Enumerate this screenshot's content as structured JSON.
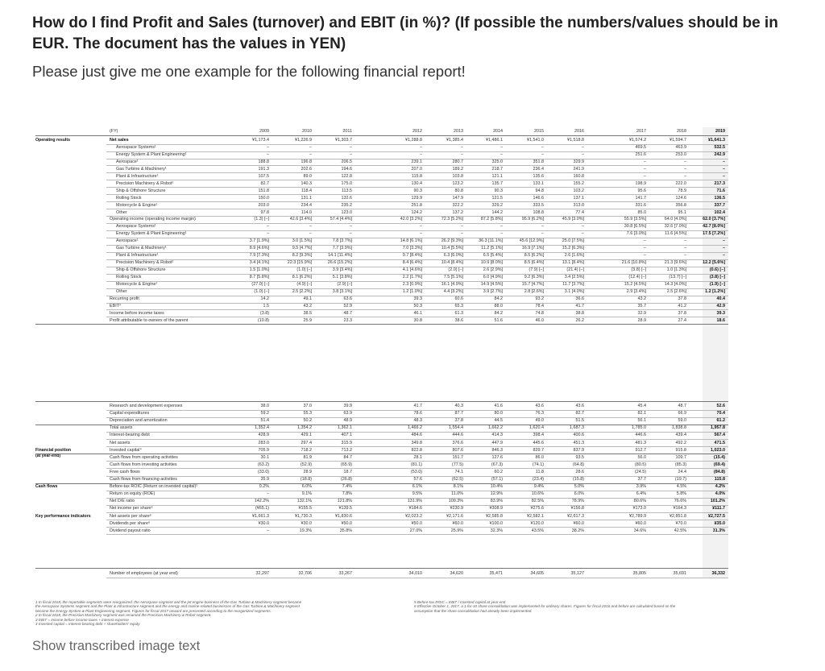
{
  "question": {
    "title": "How do I find Profit and Sales (turnover) and EBIT (in %)? (If possible the numbers/values should be in EUR. The document has the values in YEN)",
    "subtitle": "Please just give me one example for the following financial report!"
  },
  "report": {
    "fy_label": "(FY)",
    "years": [
      "2009",
      "2010",
      "2011",
      "2012",
      "2013",
      "2014",
      "2015",
      "2016",
      "2017",
      "2018",
      "2019"
    ],
    "sections": [
      {
        "label": "Operating results",
        "row": 1
      },
      {
        "label": "Financial position\n(at year-end)",
        "row": 33
      },
      {
        "label": "Cash flows",
        "row": 38
      },
      {
        "label": "Key performance indicators",
        "row": 42
      }
    ],
    "rows": [
      {
        "label": "Net sales",
        "indent": 0,
        "bold_label": true,
        "values": [
          "¥1,173.4",
          "¥1,226.9",
          "¥1,303.7",
          "¥1,288.8",
          "¥1,385.4",
          "¥1,486.1",
          "¥1,541.0",
          "¥1,518.8",
          "¥1,574.2",
          "¥1,594.7",
          "¥1,641.3"
        ]
      },
      {
        "label": "Aerospace Systems¹",
        "indent": 1,
        "values": [
          "–",
          "–",
          "–",
          "–",
          "–",
          "–",
          "–",
          "–",
          "469.5",
          "463.9",
          "532.5"
        ]
      },
      {
        "label": "Energy System & Plant Engineering¹",
        "indent": 1,
        "values": [
          "–",
          "–",
          "–",
          "–",
          "–",
          "–",
          "–",
          "–",
          "251.6",
          "253.0",
          "242.9"
        ]
      },
      {
        "label": "Aerospace¹",
        "indent": 1,
        "values": [
          "188.8",
          "196.8",
          "206.5",
          "239.1",
          "280.7",
          "325.0",
          "351.8",
          "329.9",
          "–",
          "–",
          "–"
        ]
      },
      {
        "label": "Gas Turbine & Machinery¹",
        "indent": 1,
        "values": [
          "191.3",
          "202.6",
          "194.6",
          "207.0",
          "189.2",
          "218.7",
          "236.4",
          "241.9",
          "–",
          "–",
          "–"
        ]
      },
      {
        "label": "Plant & Infrastructure¹",
        "indent": 1,
        "values": [
          "107.5",
          "89.0",
          "122.8",
          "115.8",
          "103.8",
          "121.1",
          "135.6",
          "160.8",
          "–",
          "–",
          "–"
        ]
      },
      {
        "label": "Precision Machinery & Robot²",
        "indent": 1,
        "values": [
          "82.7",
          "140.3",
          "175.0",
          "130.4",
          "123.2",
          "135.7",
          "133.1",
          "155.2",
          "198.9",
          "222.0",
          "217.3"
        ]
      },
      {
        "label": "Ship & Offshore Structure",
        "indent": 1,
        "values": [
          "151.8",
          "118.4",
          "113.5",
          "90.3",
          "80.8",
          "90.3",
          "94.8",
          "103.2",
          "95.6",
          "78.9",
          "71.6"
        ]
      },
      {
        "label": "Rolling Stock",
        "indent": 1,
        "values": [
          "150.0",
          "131.1",
          "132.6",
          "129.9",
          "147.9",
          "121.5",
          "146.6",
          "137.1",
          "141.7",
          "124.6",
          "136.5"
        ]
      },
      {
        "label": "Motorcycle & Engine¹",
        "indent": 1,
        "values": [
          "203.0",
          "234.4",
          "235.2",
          "251.8",
          "322.2",
          "329.2",
          "333.5",
          "313.0",
          "331.6",
          "356.8",
          "337.7"
        ]
      },
      {
        "label": "Other",
        "indent": 1,
        "values": [
          "97.8",
          "114.0",
          "123.0",
          "124.2",
          "137.2",
          "144.2",
          "108.8",
          "77.4",
          "85.0",
          "95.1",
          "102.4"
        ]
      },
      {
        "label": "Operating income (operating income margin)",
        "indent": 0,
        "values": [
          "(1.3)  [–]",
          "42.6  [3.4%]",
          "57.4  [4.4%]",
          "42.0  [3.2%]",
          "72.3  [5.2%]",
          "87.2  [5.8%]",
          "95.9  [6.2%]",
          "45.9  [3.0%]",
          "55.9  [3.5%]",
          "64.0  [4.0%]",
          "62.0  [3.7%]"
        ]
      },
      {
        "label": "Aerospace Systems¹",
        "indent": 1,
        "values": [
          "–",
          "–",
          "–",
          "–",
          "–",
          "–",
          "–",
          "–",
          "30.8  [6.5%]",
          "32.6  [7.0%]",
          "42.7  [8.0%]"
        ]
      },
      {
        "label": "Energy System & Plant Engineering¹",
        "indent": 1,
        "values": [
          "–",
          "–",
          "–",
          "–",
          "–",
          "–",
          "–",
          "–",
          "7.6  [3.0%]",
          "11.6  [4.5%]",
          "17.5  [7.2%]"
        ]
      },
      {
        "label": "Aerospace¹",
        "indent": 1,
        "values": [
          "3.7  [1.9%]",
          "3.0  [1.5%]",
          "7.8  [3.7%]",
          "14.8  [6.1%]",
          "26.2  [9.3%]",
          "36.3  [11.1%]",
          "45.6  [12.9%]",
          "25.0  [7.5%]",
          "–",
          "–",
          "–"
        ]
      },
      {
        "label": "Gas Turbine & Machinery¹",
        "indent": 1,
        "values": [
          "8.9  [4.6%]",
          "9.5  [4.7%]",
          "7.7  [3.9%]",
          "7.0  [3.3%]",
          "10.4  [5.5%]",
          "11.2  [5.1%]",
          "16.9  [7.1%]",
          "15.2  [6.3%]",
          "–",
          "–",
          "–"
        ]
      },
      {
        "label": "Plant & Infrastructure¹",
        "indent": 1,
        "values": [
          "7.9  [7.3%]",
          "8.2  [9.3%]",
          "14.1  [11.4%]",
          "9.7  [8.4%]",
          "6.3  [6.0%]",
          "6.5  [5.4%]",
          "8.5  [6.2%]",
          "2.6  [1.6%]",
          "–",
          "–",
          "–"
        ]
      },
      {
        "label": "Precision Machinery & Robot²",
        "indent": 1,
        "values": [
          "3.4  [4.1%]",
          "22.3  [15.9%]",
          "26.6  [15.2%]",
          "8.4  [6.4%]",
          "10.4  [8.4%]",
          "10.9  [8.0%]",
          "8.5  [6.4%]",
          "13.1  [8.4%]",
          "21.6  [10.8%]",
          "21.3  [9.6%]",
          "12.2  [5.6%]"
        ]
      },
      {
        "label": "Ship & Offshore Structure",
        "indent": 1,
        "values": [
          "1.5  [1.0%]",
          "(1.0)  [–]",
          "3.9  [3.4%]",
          "4.1  [4.6%]",
          "(2.0)  [–]",
          "2.6  [2.9%]",
          "(7.9)  [–]",
          "(21.4)  [–]",
          "(3.8)  [–]",
          "1.0  [1.3%]",
          "(0.6)  [–]"
        ]
      },
      {
        "label": "Rolling Stock",
        "indent": 1,
        "values": [
          "8.7  [5.8%]",
          "8.1  [6.2%]",
          "5.1  [3.8%]",
          "2.2  [1.7%]",
          "7.5  [5.1%]",
          "6.0  [4.9%]",
          "9.2  [6.3%]",
          "3.4  [2.5%]",
          "(12.4)  [–]",
          "(13.7)  [–]",
          "(3.8)  [–]"
        ]
      },
      {
        "label": "Motorcycle & Engine¹",
        "indent": 1,
        "values": [
          "(27.0)  [–]",
          "(4.9)  [–]",
          "(2.9)  [–]",
          "2.3  [0.9%]",
          "16.1  [4.9%]",
          "14.9  [4.5%]",
          "15.7  [4.7%]",
          "11.7  [3.7%]",
          "15.2  [4.5%]",
          "14.3  [4.0%]",
          "(1.9)  [–]"
        ]
      },
      {
        "label": "Other",
        "indent": 1,
        "values": [
          "(1.0)  [–]",
          "2.5  [2.2%]",
          "3.8  [3.1%]",
          "1.2  [1.0%]",
          "4.4  [3.2%]",
          "3.9  [2.7%]",
          "2.8  [2.6%]",
          "3.1  [4.0%]",
          "2.9  [3.4%]",
          "2.5  [2.6%]",
          "1.2  [1.2%]"
        ]
      },
      {
        "label": "Recurring profit",
        "indent": 0,
        "values": [
          "14.2",
          "49.1",
          "63.6",
          "39.3",
          "60.6",
          "84.2",
          "93.2",
          "36.6",
          "43.2",
          "37.8",
          "40.4"
        ]
      },
      {
        "label": "EBIT³",
        "indent": 0,
        "values": [
          "1.5",
          "43.2",
          "52.9",
          "50.3",
          "65.3",
          "88.0",
          "78.4",
          "41.7",
          "35.7",
          "41.2",
          "42.9"
        ]
      },
      {
        "label": "Income before income taxes",
        "indent": 0,
        "values": [
          "(3.8)",
          "38.5",
          "48.7",
          "46.1",
          "61.3",
          "84.2",
          "74.8",
          "38.8",
          "32.9",
          "37.8",
          "39.3"
        ]
      },
      {
        "label": "Profit attributable to owners of the parent",
        "indent": 0,
        "values": [
          "(10.8)",
          "25.9",
          "23.3",
          "30.8",
          "38.6",
          "51.6",
          "46.0",
          "26.2",
          "28.9",
          "27.4",
          "18.6"
        ]
      },
      {
        "label": "Research and development expenses",
        "indent": 0,
        "values": [
          "38.0",
          "37.0",
          "39.9",
          "41.7",
          "40.3",
          "41.6",
          "43.6",
          "43.6",
          "45.4",
          "48.7",
          "52.6"
        ]
      },
      {
        "label": "Capital expenditures",
        "indent": 0,
        "values": [
          "59.2",
          "55.3",
          "63.9",
          "78.6",
          "87.7",
          "80.0",
          "76.3",
          "82.7",
          "82.1",
          "66.9",
          "70.4"
        ]
      },
      {
        "label": "Depreciation and amortization",
        "indent": 0,
        "values": [
          "51.4",
          "50.2",
          "48.9",
          "48.3",
          "37.8",
          "44.5",
          "49.0",
          "51.5",
          "56.1",
          "59.0",
          "61.2"
        ]
      },
      {
        "label": "Total assets",
        "indent": 0,
        "values": [
          "1,352.4",
          "1,354.2",
          "1,362.1",
          "1,466.2",
          "1,554.4",
          "1,662.2",
          "1,620.4",
          "1,687.3",
          "1,785.0",
          "1,838.8",
          "1,957.8"
        ]
      },
      {
        "label": "Interest-bearing debt",
        "indent": 0,
        "values": [
          "428.9",
          "429.1",
          "407.1",
          "484.6",
          "444.6",
          "414.3",
          "398.4",
          "400.6",
          "446.6",
          "439.4",
          "567.4"
        ]
      },
      {
        "label": "Net assets",
        "indent": 0,
        "values": [
          "283.0",
          "297.4",
          "315.9",
          "349.8",
          "376.6",
          "447.9",
          "445.6",
          "451.3",
          "481.3",
          "492.2",
          "471.5"
        ]
      },
      {
        "label": "Invested capital⁴",
        "indent": 0,
        "values": [
          "705.9",
          "718.2",
          "713.2",
          "822.8",
          "807.6",
          "846.3",
          "829.7",
          "837.9",
          "912.7",
          "915.8",
          "1,023.0"
        ]
      },
      {
        "label": "Cash flows from operating activities",
        "indent": 0,
        "values": [
          "30.1",
          "81.9",
          "84.7",
          "28.1",
          "151.7",
          "127.6",
          "86.0",
          "93.5",
          "56.0",
          "109.7",
          "(15.4)"
        ]
      },
      {
        "label": "Cash flows from investing activities",
        "indent": 0,
        "values": [
          "(63.2)",
          "(52.9)",
          "(65.9)",
          "(81.1)",
          "(77.5)",
          "(67.3)",
          "(74.1)",
          "(64.8)",
          "(80.5)",
          "(85.3)",
          "(69.4)"
        ]
      },
      {
        "label": "Free cash flows",
        "indent": 0,
        "values": [
          "(33.0)",
          "28.9",
          "18.7",
          "(53.0)",
          "74.1",
          "60.2",
          "11.8",
          "28.6",
          "(24.5)",
          "24.4",
          "(84.8)"
        ]
      },
      {
        "label": "Cash flows from financing activities",
        "indent": 0,
        "values": [
          "35.9",
          "(18.8)",
          "(26.8)",
          "57.6",
          "(62.5)",
          "(57.1)",
          "(23.4)",
          "(15.8)",
          "37.7",
          "(19.7)",
          "115.8"
        ]
      },
      {
        "label": "Before-tax ROIC (Return on invested capital)⁵",
        "indent": 0,
        "values": [
          "0.2%",
          "6.0%",
          "7.4%",
          "6.1%",
          "8.1%",
          "10.4%",
          "9.4%",
          "5.0%",
          "3.9%",
          "4.5%",
          "4.2%"
        ]
      },
      {
        "label": "Return on equity (ROE)",
        "indent": 0,
        "values": [
          "–",
          "9.1%",
          "7.8%",
          "9.5%",
          "11.0%",
          "12.9%",
          "10.6%",
          "6.0%",
          "6.4%",
          "5.8%",
          "4.0%"
        ]
      },
      {
        "label": "Net D/E ratio",
        "indent": 0,
        "values": [
          "142.2%",
          "132.1%",
          "121.8%",
          "131.9%",
          "109.3%",
          "83.9%",
          "82.5%",
          "78.9%",
          "80.6%",
          "76.6%",
          "101.2%"
        ]
      },
      {
        "label": "Net income per share⁶",
        "indent": 0,
        "values": [
          "(¥65.1)",
          "¥155.5",
          "¥139.5",
          "¥184.6",
          "¥230.9",
          "¥308.9",
          "¥275.6",
          "¥156.8",
          "¥173.0",
          "¥164.3",
          "¥111.7"
        ]
      },
      {
        "label": "Net assets per share⁶",
        "indent": 0,
        "values": [
          "¥1,661.3",
          "¥1,730.3",
          "¥1,830.6",
          "¥2,023.2",
          "¥2,171.6",
          "¥2,585.8",
          "¥2,582.1",
          "¥2,617.3",
          "¥2,789.9",
          "¥2,851.8",
          "¥2,727.5"
        ]
      },
      {
        "label": "Dividends per share⁶",
        "indent": 0,
        "values": [
          "¥30.0",
          "¥30.0",
          "¥50.0",
          "¥50.0",
          "¥60.0",
          "¥100.0",
          "¥120.0",
          "¥60.0",
          "¥60.0",
          "¥70.0",
          "¥35.0"
        ]
      },
      {
        "label": "Dividend payout ratio",
        "indent": 0,
        "values": [
          "–",
          "19.3%",
          "35.8%",
          "27.0%",
          "25.9%",
          "32.3%",
          "43.5%",
          "38.2%",
          "34.6%",
          "42.5%",
          "31.3%"
        ]
      },
      {
        "label": "Number of employees (at year end)",
        "indent": 0,
        "values": [
          "32,297",
          "32,706",
          "33,267",
          "34,010",
          "34,620",
          "35,471",
          "34,605",
          "35,127",
          "35,805",
          "35,691",
          "36,332"
        ]
      }
    ],
    "footnotes_left": [
      "1  In fiscal 2018, the reportable segments were reorganized: the Aerospace segment and the jet engine business of the Gas Turbine & Machinery segment became",
      "    the Aerospace Systems segment and the Plant & Infrastructure segment and the energy and marine-related businesses of the Gas Turbine & Machinery segment",
      "    became the Energy System & Plant Engineering segment. Figures for fiscal 2017 onward are presented according to the reorganized segments.",
      "2  In fiscal 2018, the Precision Machinery segment was renamed the Precision Machinery & Robot segment.",
      "3  EBIT = Income before income taxes + interest expense",
      "4  Invested capital = Interest-bearing debt + shareholders' equity"
    ],
    "footnotes_right": [
      "5  Before-tax ROIC = EBIT / Invested capital at year end",
      "6  Effective October 1, 2017, a 1-for-10 share consolidation was implemented for ordinary shares. Figures for fiscal 2016 and before are calculated based on the",
      "    assumption that the share consolidation had already been implemented."
    ]
  },
  "footer": {
    "show_transcribed": "Show transcribed image text"
  }
}
